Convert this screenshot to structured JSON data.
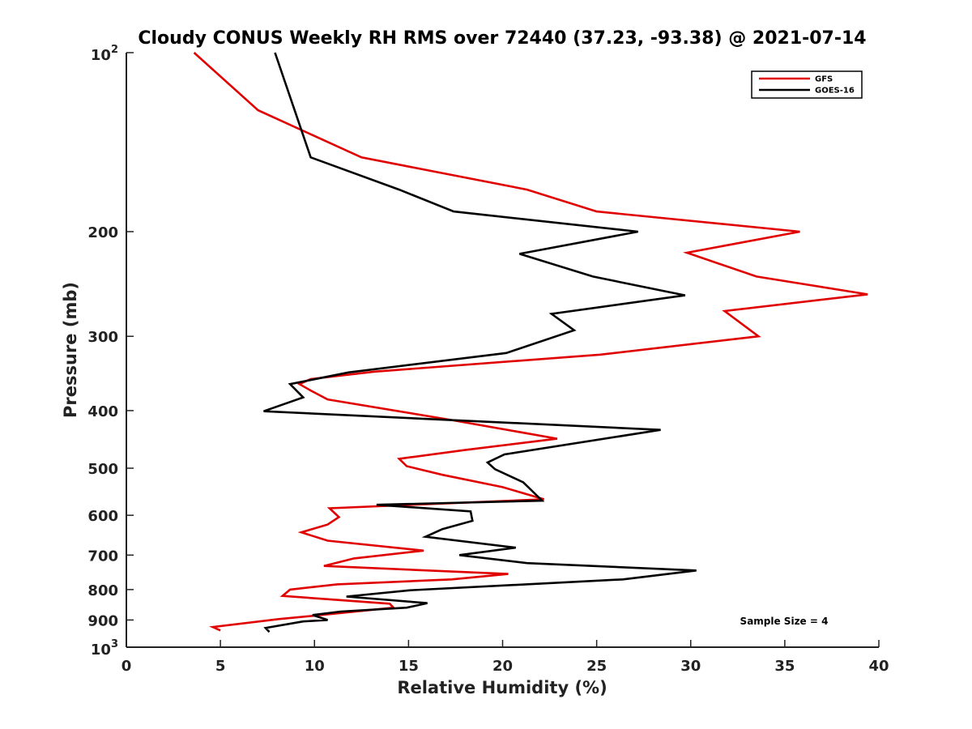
{
  "chart_data": {
    "type": "line",
    "title": "Cloudy CONUS Weekly RH RMS over 72440 (37.23, -93.38) @ 2021-07-14",
    "xlabel": "Relative Humidity (%)",
    "ylabel": "Pressure (mb)",
    "xlim": [
      0,
      40
    ],
    "ylim": [
      100,
      1000
    ],
    "y_scale": "log",
    "y_reversed": true,
    "grid": false,
    "legend_position": "top-right",
    "x_ticks": [
      "0",
      "5",
      "10",
      "15",
      "20",
      "25",
      "30",
      "35",
      "40"
    ],
    "y_ticks": [
      {
        "value": 100,
        "base": "10",
        "exp": "2",
        "label": ""
      },
      {
        "value": 200,
        "label": "200"
      },
      {
        "value": 300,
        "label": "300"
      },
      {
        "value": 400,
        "label": "400"
      },
      {
        "value": 500,
        "label": "500"
      },
      {
        "value": 600,
        "label": "600"
      },
      {
        "value": 700,
        "label": "700"
      },
      {
        "value": 800,
        "label": "800"
      },
      {
        "value": 900,
        "label": "900"
      },
      {
        "value": 1000,
        "base": "10",
        "exp": "3",
        "label": ""
      }
    ],
    "annotation": "Sample Size = 4",
    "series": [
      {
        "name": "GFS",
        "color": "#e00000",
        "points": [
          [
            3.6,
            100
          ],
          [
            7.0,
            125
          ],
          [
            12.5,
            150
          ],
          [
            21.3,
            170
          ],
          [
            25.0,
            185
          ],
          [
            35.8,
            200
          ],
          [
            29.8,
            217
          ],
          [
            33.5,
            238
          ],
          [
            39.4,
            255
          ],
          [
            31.8,
            272
          ],
          [
            33.6,
            300
          ],
          [
            25.2,
            322
          ],
          [
            13.2,
            344
          ],
          [
            9.8,
            354
          ],
          [
            9.2,
            361
          ],
          [
            9.8,
            370
          ],
          [
            10.7,
            383
          ],
          [
            17.3,
            415
          ],
          [
            22.9,
            446
          ],
          [
            18.0,
            466
          ],
          [
            14.5,
            482
          ],
          [
            14.9,
            496
          ],
          [
            16.8,
            513
          ],
          [
            20.0,
            538
          ],
          [
            22.2,
            564
          ],
          [
            10.8,
            584
          ],
          [
            11.3,
            604
          ],
          [
            10.7,
            622
          ],
          [
            9.3,
            641
          ],
          [
            10.7,
            662
          ],
          [
            15.8,
            688
          ],
          [
            12.1,
            709
          ],
          [
            10.5,
            730
          ],
          [
            20.3,
            753
          ],
          [
            17.3,
            769
          ],
          [
            11.2,
            784
          ],
          [
            8.7,
            800
          ],
          [
            8.3,
            820
          ],
          [
            14.0,
            845
          ],
          [
            14.2,
            858
          ],
          [
            10.0,
            885
          ],
          [
            8.1,
            897
          ],
          [
            4.6,
            925
          ],
          [
            5.0,
            937
          ]
        ]
      },
      {
        "name": "GOES-16",
        "color": "#000000",
        "points": [
          [
            7.9,
            100
          ],
          [
            9.8,
            150
          ],
          [
            14.5,
            170
          ],
          [
            17.4,
            185
          ],
          [
            27.2,
            200
          ],
          [
            20.9,
            218
          ],
          [
            24.8,
            238
          ],
          [
            29.7,
            256
          ],
          [
            22.6,
            275
          ],
          [
            23.8,
            293
          ],
          [
            20.2,
            320
          ],
          [
            11.8,
            345
          ],
          [
            8.7,
            361
          ],
          [
            9.4,
            380
          ],
          [
            7.3,
            401
          ],
          [
            28.4,
            431
          ],
          [
            20.1,
            474
          ],
          [
            19.2,
            489
          ],
          [
            19.6,
            502
          ],
          [
            21.1,
            528
          ],
          [
            22.1,
            567
          ],
          [
            13.3,
            576
          ],
          [
            18.3,
            591
          ],
          [
            18.4,
            613
          ],
          [
            16.8,
            633
          ],
          [
            15.9,
            652
          ],
          [
            20.7,
            680
          ],
          [
            17.7,
            700
          ],
          [
            21.3,
            722
          ],
          [
            30.3,
            743
          ],
          [
            26.4,
            769
          ],
          [
            15.1,
            802
          ],
          [
            11.7,
            822
          ],
          [
            16.0,
            843
          ],
          [
            14.9,
            858
          ],
          [
            11.4,
            871
          ],
          [
            9.9,
            883
          ],
          [
            10.7,
            900
          ],
          [
            9.4,
            905
          ],
          [
            7.4,
            928
          ],
          [
            7.6,
            943
          ]
        ]
      }
    ]
  }
}
